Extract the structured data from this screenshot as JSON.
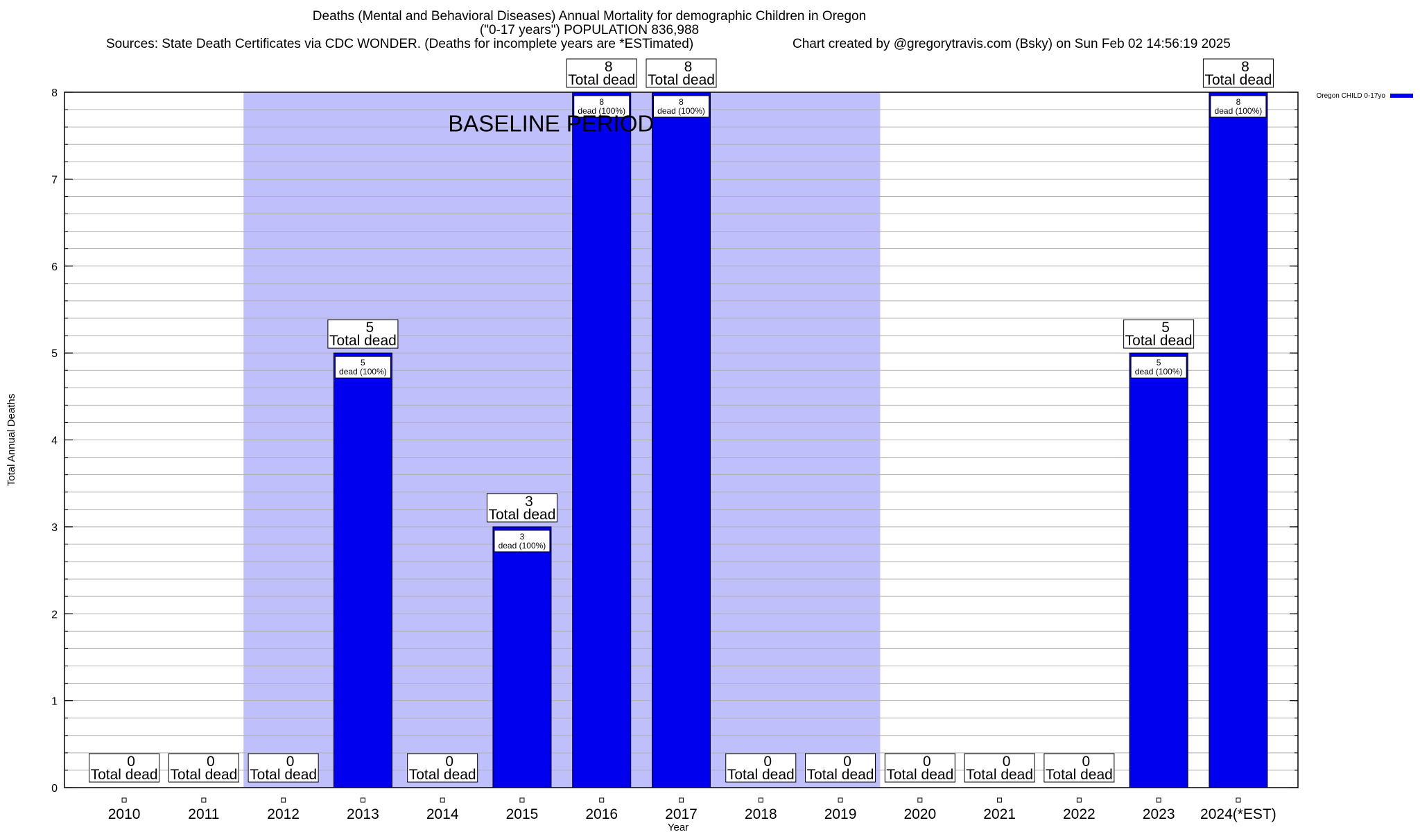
{
  "header": {
    "title_line1": "Deaths (Mental and Behavioral Diseases) Annual Mortality for demographic Children in Oregon",
    "title_line2": "(\"0-17 years\") POPULATION 836,988",
    "sources": "Sources: State Death Certificates via CDC WONDER. (Deaths for incomplete years are *ESTimated)",
    "credit": "Chart created by @gregorytravis.com (Bsky) on Sun Feb 02 14:56:19 2025"
  },
  "chart_data": {
    "type": "bar",
    "title": "Deaths (Mental and Behavioral Diseases) Annual Mortality for demographic Children in Oregon",
    "xlabel": "Year",
    "ylabel": "Total Annual Deaths",
    "ylim": [
      0,
      8
    ],
    "yticks": [
      0,
      1,
      2,
      3,
      4,
      5,
      6,
      7,
      8
    ],
    "categories": [
      "2010",
      "2011",
      "2012",
      "2013",
      "2014",
      "2015",
      "2016",
      "2017",
      "2018",
      "2019",
      "2020",
      "2021",
      "2022",
      "2023",
      "2024(*EST)"
    ],
    "series": [
      {
        "name": "Oregon CHILD 0-17yo",
        "values": [
          0,
          0,
          0,
          5,
          0,
          3,
          8,
          8,
          0,
          0,
          0,
          0,
          0,
          5,
          8
        ]
      }
    ],
    "total_label": "Total dead",
    "bar_label_suffix": "dead (100%)",
    "baseline": {
      "label": "BASELINE PERIOD",
      "start": "2012",
      "end": "2019"
    },
    "legend_position": "top-right",
    "grid": true,
    "colors": {
      "bar": "#0000ee",
      "baseline": "#bfbffb",
      "grid": "#b0b0b0"
    }
  }
}
